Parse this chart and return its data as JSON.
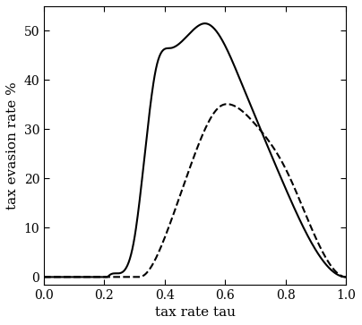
{
  "title": "",
  "xlabel": "tax rate tau",
  "ylabel": "tax evasion rate %",
  "xlim": [
    0.0,
    1.0
  ],
  "ylim": [
    -1.5,
    55
  ],
  "yticks": [
    0,
    10,
    20,
    30,
    40,
    50
  ],
  "xticks": [
    0.0,
    0.2,
    0.4,
    0.6,
    0.8,
    1.0
  ],
  "background_color": "#ffffff",
  "line_color": "#000000",
  "solid_keypoints_x": [
    0.0,
    0.21,
    0.22,
    0.3,
    0.37,
    0.42,
    0.5,
    0.535,
    0.57,
    0.65,
    0.8,
    1.0
  ],
  "solid_keypoints_y": [
    0.0,
    0.0,
    0.5,
    8.0,
    42.0,
    46.5,
    50.5,
    51.5,
    50.0,
    40.0,
    18.0,
    0.0
  ],
  "dashed_keypoints_x": [
    0.0,
    0.32,
    0.33,
    0.4,
    0.5,
    0.58,
    0.62,
    0.7,
    0.8,
    1.0
  ],
  "dashed_keypoints_y": [
    0.0,
    0.0,
    0.3,
    8.0,
    25.0,
    34.5,
    35.0,
    31.0,
    22.0,
    0.0
  ],
  "solid_style": "-",
  "dashed_style": "--",
  "line_width": 1.5
}
